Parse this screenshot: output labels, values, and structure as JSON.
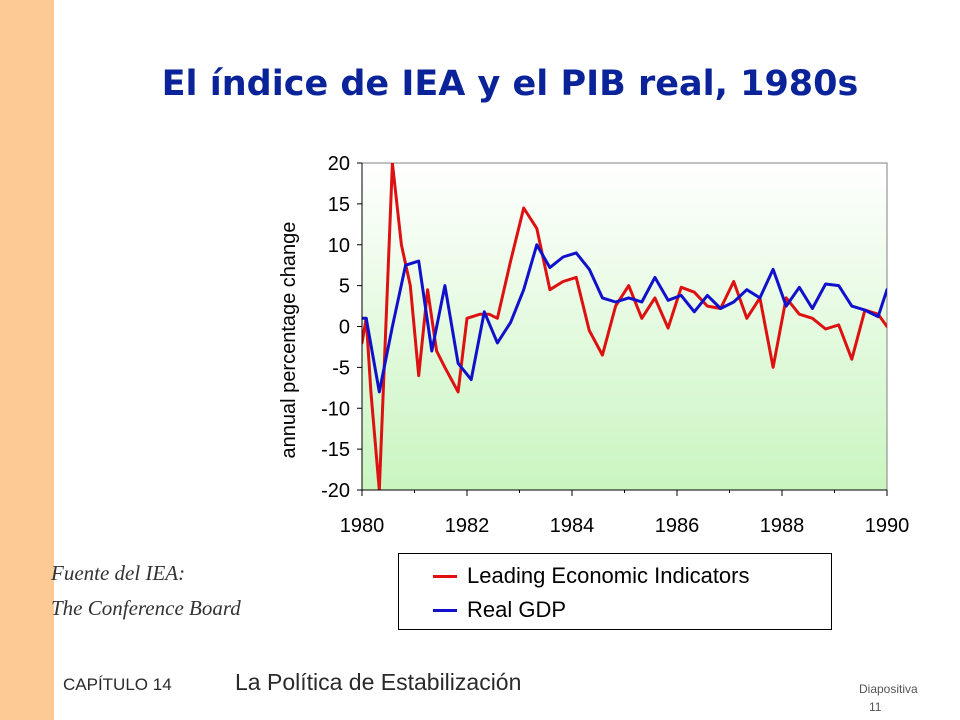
{
  "slide": {
    "title": "El índice de IEA y el PIB real, 1980s",
    "source_line1": "Fuente del IEA:",
    "source_line2": "The Conference Board",
    "footer_chapter": "CAPÍTULO 14",
    "footer_title": "La Política de Estabilización",
    "slide_label": "Diapositiva",
    "slide_number": "11"
  },
  "colors": {
    "sidebar": "#fdc994",
    "title": "#0a2399",
    "series_lei": "#dd1111",
    "series_gdp": "#1111cc",
    "plot_bg_top": "#ffffff",
    "plot_bg_bottom": "#c9f5c0"
  },
  "chart_data": {
    "type": "line",
    "title": "",
    "xlabel": "",
    "ylabel": "annual percentage change",
    "xlim": [
      1980,
      1990
    ],
    "ylim": [
      -20,
      20
    ],
    "x_ticks": [
      1980,
      1982,
      1984,
      1986,
      1988,
      1990
    ],
    "y_ticks": [
      20,
      15,
      10,
      5,
      0,
      -5,
      -10,
      -15,
      -20
    ],
    "grid": false,
    "legend_position": "bottom",
    "series": [
      {
        "name": "Leading Economic Indicators",
        "color": "#dd1111",
        "x": [
          1980.0,
          1980.08,
          1980.17,
          1980.33,
          1980.58,
          1980.75,
          1980.92,
          1981.08,
          1981.25,
          1981.42,
          1981.58,
          1981.83,
          1982.0,
          1982.25,
          1982.42,
          1982.58,
          1982.83,
          1983.08,
          1983.33,
          1983.58,
          1983.83,
          1984.08,
          1984.33,
          1984.58,
          1984.83,
          1985.08,
          1985.33,
          1985.58,
          1985.83,
          1986.08,
          1986.33,
          1986.58,
          1986.83,
          1987.08,
          1987.33,
          1987.58,
          1987.83,
          1988.08,
          1988.33,
          1988.58,
          1988.83,
          1989.08,
          1989.33,
          1989.58,
          1989.83,
          1990.0
        ],
        "values": [
          -2.0,
          1.0,
          -8.0,
          -20.0,
          20.0,
          10.0,
          5.0,
          -6.0,
          4.5,
          -3.0,
          -5.0,
          -8.0,
          1.0,
          1.5,
          1.5,
          1.0,
          8.0,
          14.5,
          12.0,
          4.5,
          5.5,
          6.0,
          -0.5,
          -3.5,
          2.5,
          5.0,
          1.0,
          3.5,
          -0.2,
          4.8,
          4.2,
          2.5,
          2.2,
          5.5,
          1.0,
          3.5,
          -5.0,
          3.5,
          1.5,
          1.0,
          -0.3,
          0.2,
          -4.0,
          2.0,
          1.5,
          0.0
        ]
      },
      {
        "name": "Real GDP",
        "color": "#1111cc",
        "x": [
          1980.0,
          1980.08,
          1980.33,
          1980.58,
          1980.83,
          1981.08,
          1981.33,
          1981.58,
          1981.83,
          1982.08,
          1982.33,
          1982.58,
          1982.83,
          1983.08,
          1983.33,
          1983.58,
          1983.83,
          1984.08,
          1984.33,
          1984.58,
          1984.83,
          1985.08,
          1985.33,
          1985.58,
          1985.83,
          1986.08,
          1986.33,
          1986.58,
          1986.83,
          1987.08,
          1987.33,
          1987.58,
          1987.83,
          1988.08,
          1988.33,
          1988.58,
          1988.83,
          1989.08,
          1989.33,
          1989.58,
          1989.83,
          1990.0
        ],
        "values": [
          1.0,
          1.0,
          -8.0,
          0.0,
          7.5,
          8.0,
          -3.0,
          5.0,
          -4.5,
          -6.5,
          1.8,
          -2.0,
          0.5,
          4.5,
          10.0,
          7.2,
          8.5,
          9.0,
          7.0,
          3.5,
          3.0,
          3.5,
          3.0,
          6.0,
          3.2,
          3.8,
          1.8,
          3.8,
          2.2,
          3.0,
          4.5,
          3.5,
          7.0,
          2.5,
          4.8,
          2.2,
          5.2,
          5.0,
          2.5,
          2.0,
          1.2,
          4.5
        ]
      }
    ]
  }
}
